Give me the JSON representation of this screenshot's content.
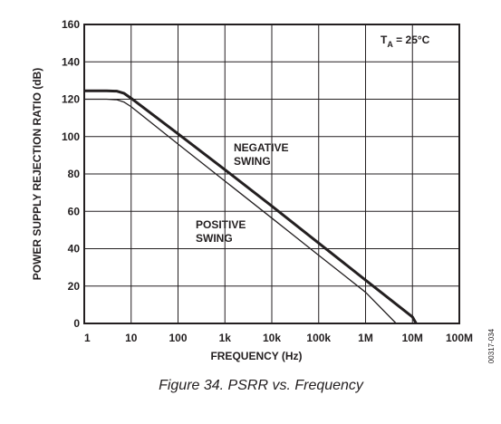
{
  "chart_data": {
    "type": "line",
    "x_scale": "log",
    "xlabel": "FREQUENCY (Hz)",
    "ylabel": "POWER SUPPLY REJECTION RATIO (dB)",
    "xlim": [
      1,
      100000000
    ],
    "ylim": [
      0,
      160
    ],
    "x_ticks": [
      {
        "value": 1,
        "label": "1"
      },
      {
        "value": 10,
        "label": "10"
      },
      {
        "value": 100,
        "label": "100"
      },
      {
        "value": 1000,
        "label": "1k"
      },
      {
        "value": 10000,
        "label": "10k"
      },
      {
        "value": 100000,
        "label": "100k"
      },
      {
        "value": 1000000,
        "label": "1M"
      },
      {
        "value": 10000000,
        "label": "10M"
      },
      {
        "value": 100000000,
        "label": "100M"
      }
    ],
    "y_ticks": [
      {
        "value": 0,
        "label": "0"
      },
      {
        "value": 20,
        "label": "20"
      },
      {
        "value": 40,
        "label": "40"
      },
      {
        "value": 60,
        "label": "60"
      },
      {
        "value": 80,
        "label": "80"
      },
      {
        "value": 100,
        "label": "100"
      },
      {
        "value": 120,
        "label": "120"
      },
      {
        "value": 140,
        "label": "140"
      },
      {
        "value": 160,
        "label": "160"
      }
    ],
    "grid": true,
    "condition": {
      "main": "T",
      "sub": "A",
      "rest": " = 25°C"
    },
    "series": [
      {
        "label_lines": [
          "NEGATIVE",
          "SWING"
        ],
        "color": "#231f20",
        "emphasis": "thick",
        "x": [
          1,
          3,
          5,
          7,
          10,
          100,
          1000,
          10000,
          100000,
          1000000,
          10000000,
          12000000
        ],
        "y": [
          124.5,
          124.5,
          124.3,
          123.2,
          120.5,
          101.5,
          82.3,
          62.8,
          43.0,
          23.2,
          3.5,
          0
        ]
      },
      {
        "label_lines": [
          "POSITIVE",
          "SWING"
        ],
        "color": "#231f20",
        "emphasis": "thin",
        "x": [
          1,
          3,
          5,
          7,
          10,
          100,
          1000,
          10000,
          100000,
          1000000,
          4500000
        ],
        "y": [
          120,
          120,
          119.7,
          118.5,
          116,
          96,
          76.2,
          56.4,
          36.5,
          16.7,
          0
        ]
      }
    ]
  },
  "caption": "Figure 34. PSRR vs. Frequency",
  "figure_id": "00317-034"
}
